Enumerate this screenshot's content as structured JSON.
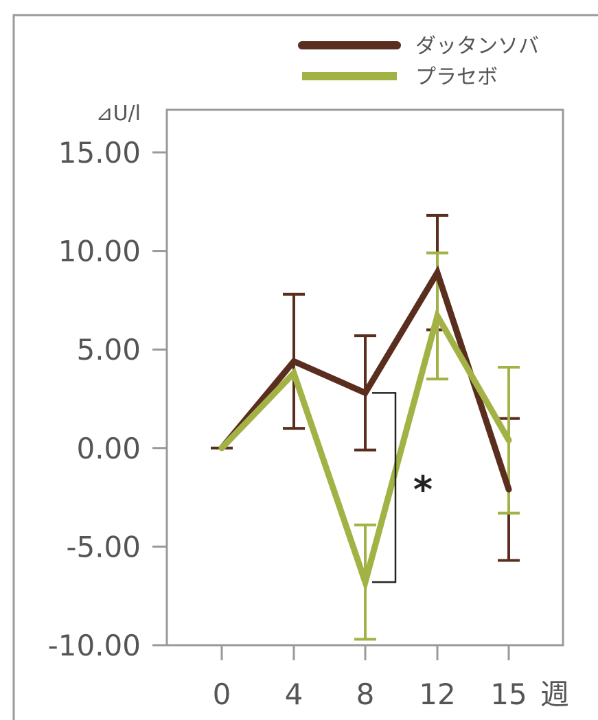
{
  "chart_data": {
    "type": "line",
    "x": [
      "0",
      "4",
      "8",
      "12",
      "15"
    ],
    "xlabel": "週",
    "ylabel": "⊿U/l",
    "ylim": [
      -10,
      15
    ],
    "yticks": [
      "15.00",
      "10.00",
      "5.00",
      "0.00",
      "-5.00",
      "-10.00"
    ],
    "grid": false,
    "legend_position": "top-right",
    "series": [
      {
        "name": "ダッタンソバ",
        "color": "#5a2e1f",
        "values": [
          0.0,
          4.4,
          2.8,
          8.9,
          -2.1
        ],
        "error": [
          0.0,
          3.4,
          2.9,
          2.9,
          3.6
        ]
      },
      {
        "name": "プラセボ",
        "color": "#a3b245",
        "values": [
          0.0,
          3.8,
          -6.8,
          6.7,
          0.4
        ],
        "error": [
          0.0,
          0.0,
          2.9,
          3.2,
          3.7
        ]
      }
    ],
    "annotations": [
      {
        "text": "*",
        "between_x": "8"
      }
    ]
  }
}
